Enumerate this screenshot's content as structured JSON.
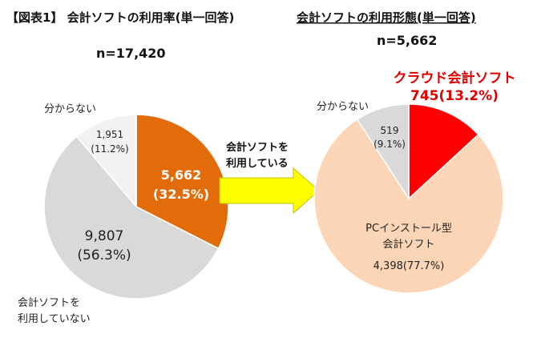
{
  "chart_data": [
    {
      "type": "pie",
      "title": "【図表1】 会計ソフトの利用率(単一回答)",
      "n_label": "n=17,420",
      "slices": [
        {
          "name": "会計ソフトを利用している",
          "value": 5662,
          "percent": 32.5,
          "value_label": "5,662",
          "percent_label": "(32.5%)",
          "color": "#e36c0a"
        },
        {
          "name": "会計ソフトを利用していない",
          "value": 9807,
          "percent": 56.3,
          "value_label": "9,807",
          "percent_label": "(56.3%)",
          "color": "#d9d9d9"
        },
        {
          "name": "分からない",
          "value": 1951,
          "percent": 11.2,
          "value_label": "1,951",
          "percent_label": "(11.2%)",
          "color": "#f2f2f2"
        }
      ],
      "outside_labels": {
        "unknown": "分からない",
        "not_using_line1": "会計ソフトを",
        "not_using_line2": "利用していない"
      }
    },
    {
      "type": "pie",
      "title": "会計ソフトの利用形態(単一回答)",
      "n_label": "n=5,662",
      "slices": [
        {
          "name": "クラウド会計ソフト",
          "value": 745,
          "percent": 13.2,
          "label_combined": "745(13.2%)",
          "color": "#ff0000"
        },
        {
          "name": "PCインストール型会計ソフト",
          "value": 4398,
          "percent": 77.7,
          "label_combined": "4,398(77.7%)",
          "color": "#fbd5b5"
        },
        {
          "name": "分からない",
          "value": 519,
          "percent": 9.1,
          "value_label": "519",
          "percent_label": "(9.1%)",
          "color": "#d9d9d9"
        }
      ],
      "labels": {
        "cloud": "クラウド会計ソフト",
        "pc_line1": "PCインストール型",
        "pc_line2": "会計ソフト",
        "unknown": "分からない"
      }
    }
  ],
  "arrow": {
    "line1": "会計ソフトを",
    "line2": "利用している",
    "color": "#ffff00",
    "stroke": "#bfbf00"
  }
}
